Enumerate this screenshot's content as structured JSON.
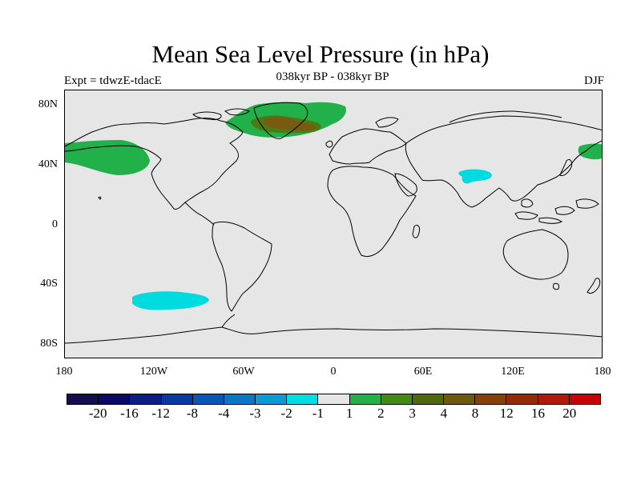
{
  "header": {
    "title": "Mean Sea Level Pressure (in hPa)",
    "experiment": "Expt = tdwzE-tdacE",
    "period": "038kyr BP - 038kyr BP",
    "season": "DJF"
  },
  "map": {
    "lat_ticks": [
      "80N",
      "40N",
      "0",
      "40S",
      "80S"
    ],
    "lon_ticks": [
      "180",
      "120W",
      "60W",
      "0",
      "60E",
      "120E",
      "180"
    ],
    "background_color": "#e6e6e6",
    "anomaly_regions": [
      {
        "name": "north-pacific-high",
        "level": "1 to 2",
        "color": "#22b04a"
      },
      {
        "name": "greenland-atlantic-high",
        "level": "1 to 2",
        "color": "#22b04a"
      },
      {
        "name": "greenland-core-high",
        "level": "4 to 8",
        "color": "#7a5a10"
      },
      {
        "name": "greenland-mid-high",
        "level": "3 to 4",
        "color": "#4d7a12"
      },
      {
        "name": "tibet-low",
        "level": "-2 to -1",
        "color": "#00dbe0"
      },
      {
        "name": "south-pacific-low",
        "level": "-2 to -1",
        "color": "#00dbe0"
      },
      {
        "name": "west-pacific-high",
        "level": "1 to 2",
        "color": "#22b04a"
      }
    ]
  },
  "colorbar": {
    "colors": [
      "#150e4c",
      "#0a0a66",
      "#0b1e85",
      "#0a38a3",
      "#0a56b4",
      "#0a77c4",
      "#0a9ad4",
      "#00dde2",
      "#e6e6e6",
      "#22b04a",
      "#438a12",
      "#4f6a0c",
      "#6e5a0a",
      "#84420a",
      "#962a08",
      "#b01a0a",
      "#c8000a"
    ],
    "labels": [
      "-20",
      "-16",
      "-12",
      "-8",
      "-4",
      "-3",
      "-2",
      "-1",
      "1",
      "2",
      "3",
      "4",
      "8",
      "12",
      "16",
      "20"
    ]
  }
}
